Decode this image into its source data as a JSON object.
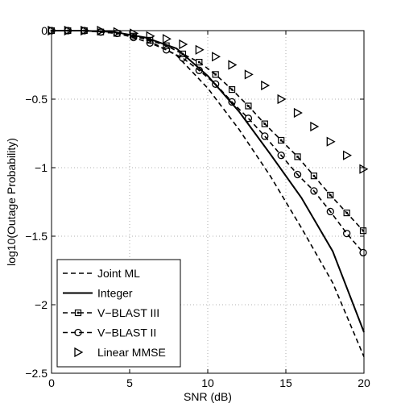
{
  "chart_data": {
    "type": "line",
    "title": "",
    "xlabel": "SNR (dB)",
    "ylabel": "log10(Outage Probability)",
    "xlim": [
      0,
      20
    ],
    "ylim": [
      -2.5,
      0
    ],
    "xticks": [
      0,
      5,
      10,
      15,
      20
    ],
    "xtick_labels": [
      "0",
      "5",
      "10",
      "15",
      "20"
    ],
    "yticks": [
      0,
      -0.5,
      -1,
      -1.5,
      -2,
      -2.5
    ],
    "ytick_labels": [
      "0",
      "−0.5",
      "−1",
      "−1.5",
      "−2",
      "−2.5"
    ],
    "grid": true,
    "legend_position": "bottom-left",
    "series": [
      {
        "name": "Joint ML",
        "line": "dashed",
        "marker": "none",
        "x": [
          0,
          2,
          4,
          6,
          8,
          10,
          12,
          14,
          16,
          18,
          20
        ],
        "y": [
          0,
          0,
          -0.01,
          -0.06,
          -0.18,
          -0.42,
          -0.72,
          -1.06,
          -1.44,
          -1.84,
          -2.38
        ]
      },
      {
        "name": "Integer",
        "line": "solid",
        "marker": "none",
        "x": [
          0,
          2,
          4,
          6,
          8,
          10,
          12,
          14,
          16,
          18,
          20
        ],
        "y": [
          0,
          0,
          -0.01,
          -0.05,
          -0.13,
          -0.33,
          -0.59,
          -0.9,
          -1.22,
          -1.61,
          -2.2
        ]
      },
      {
        "name": "V−BLAST III",
        "line": "dashed",
        "marker": "square",
        "x": [
          0,
          1.05,
          2.1,
          3.15,
          4.2,
          5.25,
          6.3,
          7.35,
          8.4,
          9.45,
          10.5,
          11.55,
          12.6,
          13.65,
          14.7,
          15.75,
          16.8,
          17.85,
          18.9,
          19.95
        ],
        "y": [
          0,
          0,
          0,
          -0.01,
          -0.02,
          -0.04,
          -0.07,
          -0.11,
          -0.17,
          -0.23,
          -0.32,
          -0.43,
          -0.55,
          -0.68,
          -0.8,
          -0.92,
          -1.06,
          -1.2,
          -1.33,
          -1.46
        ]
      },
      {
        "name": "V−BLAST II",
        "line": "dashed",
        "marker": "circle",
        "x": [
          0,
          1.05,
          2.1,
          3.15,
          4.2,
          5.25,
          6.3,
          7.35,
          8.4,
          9.45,
          10.5,
          11.55,
          12.6,
          13.65,
          14.7,
          15.75,
          16.8,
          17.85,
          18.9,
          19.95
        ],
        "y": [
          0,
          0,
          0,
          -0.01,
          -0.02,
          -0.05,
          -0.09,
          -0.14,
          -0.2,
          -0.29,
          -0.39,
          -0.52,
          -0.64,
          -0.77,
          -0.91,
          -1.05,
          -1.17,
          -1.32,
          -1.48,
          -1.62
        ]
      },
      {
        "name": "Linear MMSE",
        "line": "none",
        "marker": "triangle-right",
        "x": [
          0,
          1.05,
          2.1,
          3.15,
          4.2,
          5.25,
          6.3,
          7.35,
          8.4,
          9.45,
          10.5,
          11.55,
          12.6,
          13.65,
          14.7,
          15.75,
          16.8,
          17.85,
          18.9,
          19.95
        ],
        "y": [
          0,
          0,
          0,
          0,
          -0.01,
          -0.02,
          -0.04,
          -0.06,
          -0.1,
          -0.14,
          -0.19,
          -0.25,
          -0.32,
          -0.4,
          -0.5,
          -0.6,
          -0.7,
          -0.81,
          -0.91,
          -1.01
        ]
      }
    ]
  }
}
